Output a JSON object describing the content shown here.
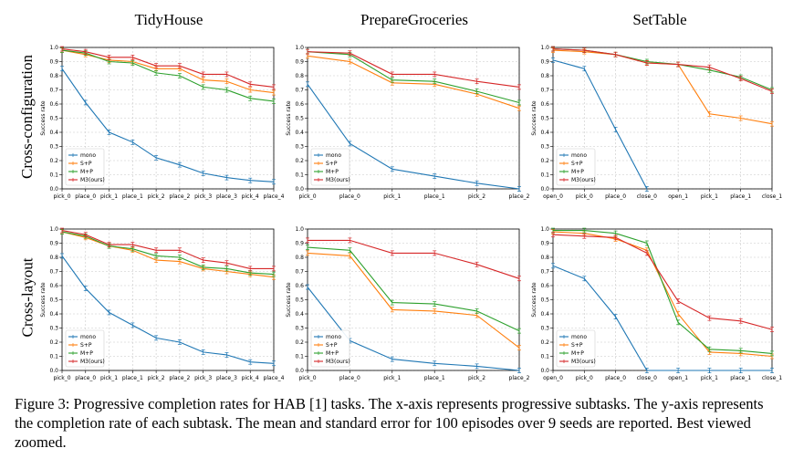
{
  "column_titles": [
    "TidyHouse",
    "PrepareGroceries",
    "SetTable"
  ],
  "row_labels": [
    "Cross-configuration",
    "Cross-layout"
  ],
  "caption": "Figure 3: Progressive completion rates for HAB [1] tasks. The x-axis represents progressive subtasks. The y-axis represents the completion rate of each subtask. The mean and standard error for 100 episodes over 9 seeds are reported. Best viewed zoomed.",
  "colors": {
    "mono": "#1f77b4",
    "S+P": "#ff7f0e",
    "M+P": "#2ca02c",
    "M3(ours)": "#d62728"
  },
  "chart_data": [
    {
      "type": "line",
      "ylabel": "Success rate",
      "ylim": [
        0,
        1
      ],
      "grid": true,
      "legend": "lower-left",
      "categories": [
        "pick_0",
        "place_0",
        "pick_1",
        "place_1",
        "pick_2",
        "place_2",
        "pick_3",
        "place_3",
        "pick_4",
        "place_4"
      ],
      "series": [
        {
          "name": "mono",
          "values": [
            0.85,
            0.61,
            0.4,
            0.33,
            0.22,
            0.17,
            0.11,
            0.08,
            0.06,
            0.05
          ]
        },
        {
          "name": "S+P",
          "values": [
            0.98,
            0.95,
            0.91,
            0.9,
            0.85,
            0.85,
            0.77,
            0.76,
            0.7,
            0.68
          ]
        },
        {
          "name": "M+P",
          "values": [
            0.98,
            0.96,
            0.9,
            0.89,
            0.82,
            0.8,
            0.72,
            0.7,
            0.64,
            0.62
          ]
        },
        {
          "name": "M3(ours)",
          "values": [
            0.99,
            0.97,
            0.93,
            0.93,
            0.87,
            0.87,
            0.81,
            0.81,
            0.74,
            0.72
          ]
        }
      ]
    },
    {
      "type": "line",
      "ylabel": "Success rate",
      "ylim": [
        0,
        1
      ],
      "grid": true,
      "legend": "lower-left",
      "categories": [
        "pick_0",
        "place_0",
        "pick_1",
        "place_1",
        "pick_2",
        "place_2"
      ],
      "series": [
        {
          "name": "mono",
          "values": [
            0.74,
            0.32,
            0.14,
            0.09,
            0.04,
            0.0
          ]
        },
        {
          "name": "S+P",
          "values": [
            0.94,
            0.9,
            0.75,
            0.74,
            0.67,
            0.57
          ]
        },
        {
          "name": "M+P",
          "values": [
            0.97,
            0.95,
            0.77,
            0.76,
            0.69,
            0.61
          ]
        },
        {
          "name": "M3(ours)",
          "values": [
            0.97,
            0.96,
            0.81,
            0.81,
            0.76,
            0.72
          ]
        }
      ]
    },
    {
      "type": "line",
      "ylabel": "Success rate",
      "ylim": [
        0,
        1
      ],
      "grid": true,
      "legend": "lower-left",
      "categories": [
        "open_0",
        "pick_0",
        "place_0",
        "close_0",
        "open_1",
        "pick_1",
        "place_1",
        "close_1"
      ],
      "series": [
        {
          "name": "mono",
          "values": [
            0.91,
            0.85,
            0.42,
            0.0,
            null,
            null,
            null,
            null
          ]
        },
        {
          "name": "S+P",
          "values": [
            0.98,
            0.97,
            0.95,
            0.89,
            0.88,
            0.53,
            0.5,
            0.46
          ]
        },
        {
          "name": "M+P",
          "values": [
            0.99,
            0.98,
            0.95,
            0.9,
            0.88,
            0.84,
            0.79,
            0.7
          ]
        },
        {
          "name": "M3(ours)",
          "values": [
            0.99,
            0.98,
            0.95,
            0.89,
            0.88,
            0.86,
            0.78,
            0.69
          ]
        }
      ]
    },
    {
      "type": "line",
      "ylabel": "Success rate",
      "ylim": [
        0,
        1
      ],
      "grid": true,
      "legend": "lower-left",
      "categories": [
        "pick_0",
        "place_0",
        "pick_1",
        "place_1",
        "pick_2",
        "place_2",
        "pick_3",
        "place_3",
        "pick_4",
        "place_4"
      ],
      "series": [
        {
          "name": "mono",
          "values": [
            0.81,
            0.58,
            0.41,
            0.32,
            0.23,
            0.2,
            0.13,
            0.11,
            0.06,
            0.05
          ]
        },
        {
          "name": "S+P",
          "values": [
            0.98,
            0.94,
            0.88,
            0.85,
            0.78,
            0.77,
            0.72,
            0.7,
            0.68,
            0.66
          ]
        },
        {
          "name": "M+P",
          "values": [
            0.98,
            0.95,
            0.88,
            0.86,
            0.81,
            0.8,
            0.73,
            0.72,
            0.69,
            0.68
          ]
        },
        {
          "name": "M3(ours)",
          "values": [
            0.99,
            0.96,
            0.89,
            0.89,
            0.85,
            0.85,
            0.78,
            0.76,
            0.72,
            0.72
          ]
        }
      ]
    },
    {
      "type": "line",
      "ylabel": "Success rate",
      "ylim": [
        0,
        1
      ],
      "grid": true,
      "legend": "lower-left",
      "categories": [
        "pick_0",
        "place_0",
        "pick_1",
        "place_1",
        "pick_2",
        "place_2"
      ],
      "series": [
        {
          "name": "mono",
          "values": [
            0.59,
            0.21,
            0.08,
            0.05,
            0.03,
            0.0
          ]
        },
        {
          "name": "S+P",
          "values": [
            0.83,
            0.81,
            0.43,
            0.42,
            0.39,
            0.16
          ]
        },
        {
          "name": "M+P",
          "values": [
            0.87,
            0.85,
            0.48,
            0.47,
            0.42,
            0.28
          ]
        },
        {
          "name": "M3(ours)",
          "values": [
            0.92,
            0.92,
            0.83,
            0.83,
            0.75,
            0.65
          ]
        }
      ]
    },
    {
      "type": "line",
      "ylabel": "Success rate",
      "ylim": [
        0,
        1
      ],
      "grid": true,
      "legend": "lower-left",
      "categories": [
        "open_0",
        "pick_0",
        "place_0",
        "close_0",
        "open_1",
        "pick_1",
        "place_1",
        "close_1"
      ],
      "series": [
        {
          "name": "mono",
          "values": [
            0.74,
            0.65,
            0.38,
            0.0,
            0.0,
            0.0,
            0.0,
            0.0
          ]
        },
        {
          "name": "S+P",
          "values": [
            0.98,
            0.97,
            0.93,
            0.85,
            0.4,
            0.13,
            0.12,
            0.1
          ]
        },
        {
          "name": "M+P",
          "values": [
            0.99,
            0.99,
            0.97,
            0.9,
            0.34,
            0.15,
            0.14,
            0.12
          ]
        },
        {
          "name": "M3(ours)",
          "values": [
            0.96,
            0.95,
            0.94,
            0.83,
            0.49,
            0.37,
            0.35,
            0.29
          ]
        }
      ]
    }
  ]
}
